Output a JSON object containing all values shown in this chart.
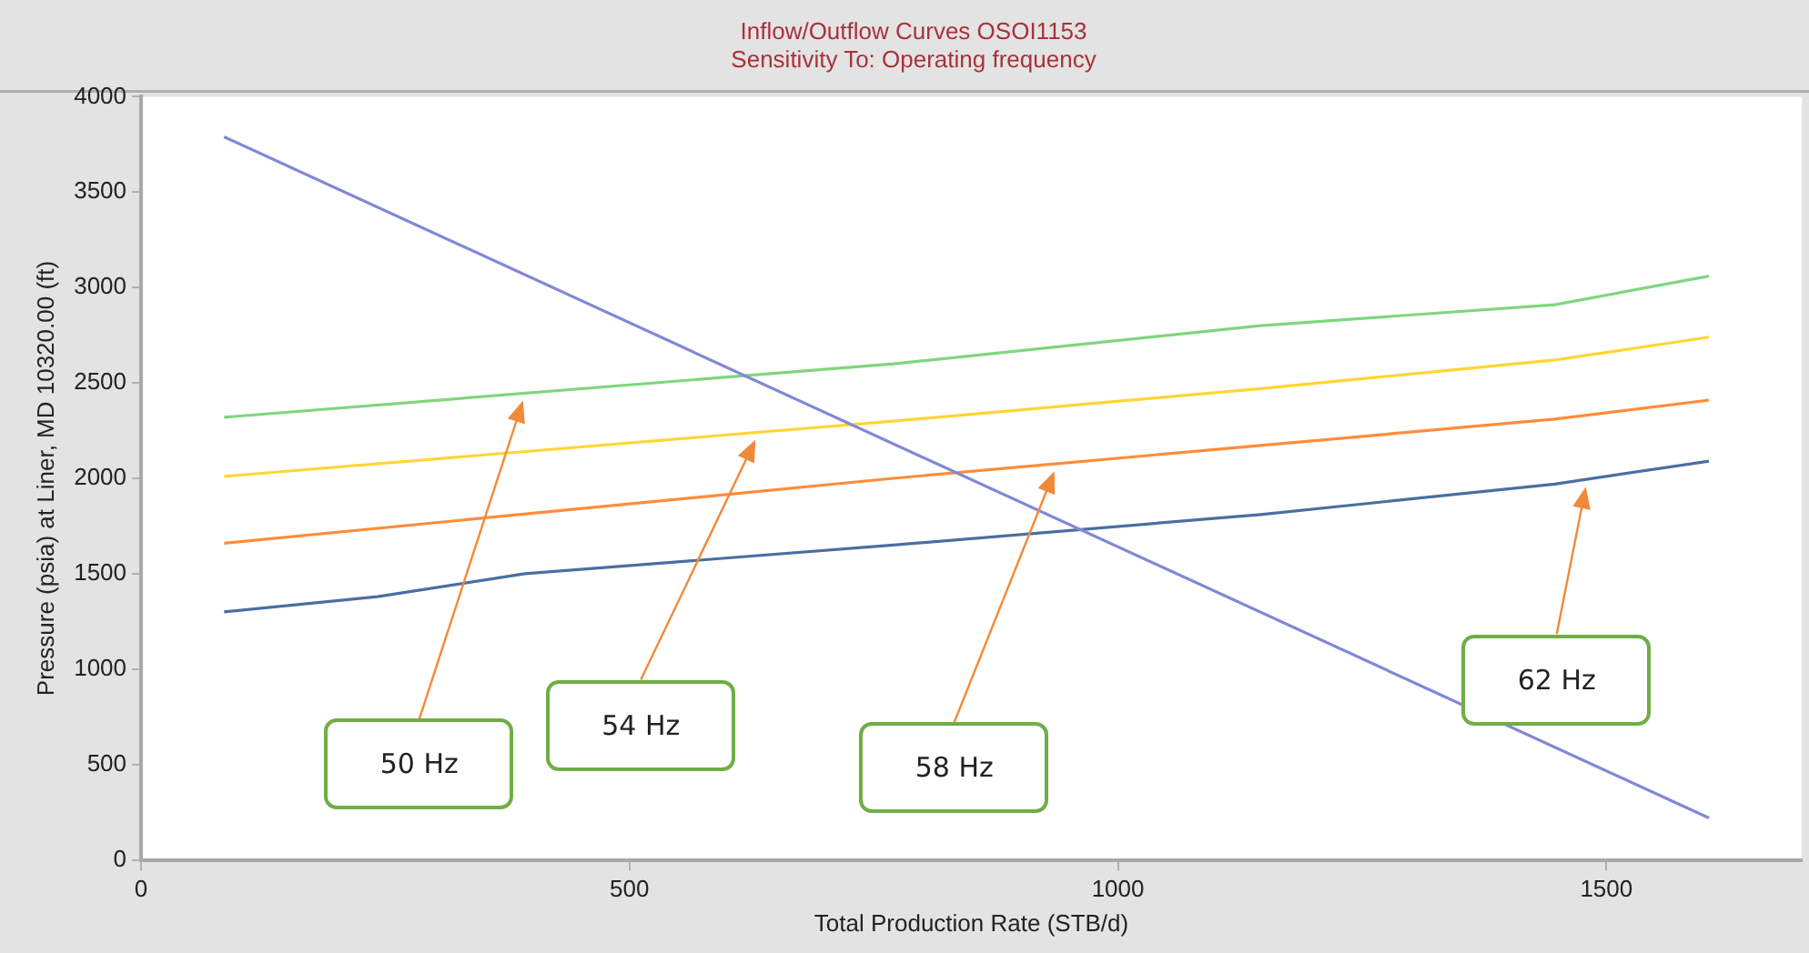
{
  "chart_data": {
    "type": "line",
    "title": "Inflow/Outflow Curves OSOI1153",
    "subtitle": "Sensitivity To: Operating frequency",
    "xlabel": "Total Production Rate (STB/d)",
    "ylabel": "Pressure (psia) at Liner, MD 10320.00 (ft)",
    "series": [
      {
        "color": "#8088d8",
        "x": [
          85,
          1605
        ],
        "values": [
          3790,
          220
        ]
      },
      {
        "name": "50 Hz",
        "color": "#7fd67f",
        "x": [
          85,
          770,
          1146,
          1447,
          1605
        ],
        "values": [
          2320,
          2600,
          2800,
          2910,
          3060
        ]
      },
      {
        "name": "54 Hz",
        "color": "#ffd633",
        "x": [
          85,
          770,
          1146,
          1447,
          1605
        ],
        "values": [
          2010,
          2300,
          2470,
          2620,
          2740
        ]
      },
      {
        "name": "58 Hz",
        "color": "#ff8c3a",
        "x": [
          85,
          770,
          1447,
          1605
        ],
        "values": [
          1660,
          2000,
          2310,
          2410
        ]
      },
      {
        "name": "62 Hz",
        "color": "#4a6fa0",
        "x": [
          85,
          242,
          393,
          770,
          1146,
          1447,
          1605
        ],
        "values": [
          1300,
          1380,
          1500,
          1650,
          1810,
          1970,
          2090
        ]
      }
    ],
    "xlim": [
      0,
      1700
    ],
    "xticks": [
      0,
      500,
      1000,
      1500
    ],
    "ylim": [
      0,
      4000
    ],
    "yticks": [
      0,
      500,
      1000,
      1500,
      2000,
      2500,
      3000,
      3500,
      4000
    ],
    "grid": false,
    "legend": false,
    "marker": "none",
    "line_style": "solid"
  }
}
